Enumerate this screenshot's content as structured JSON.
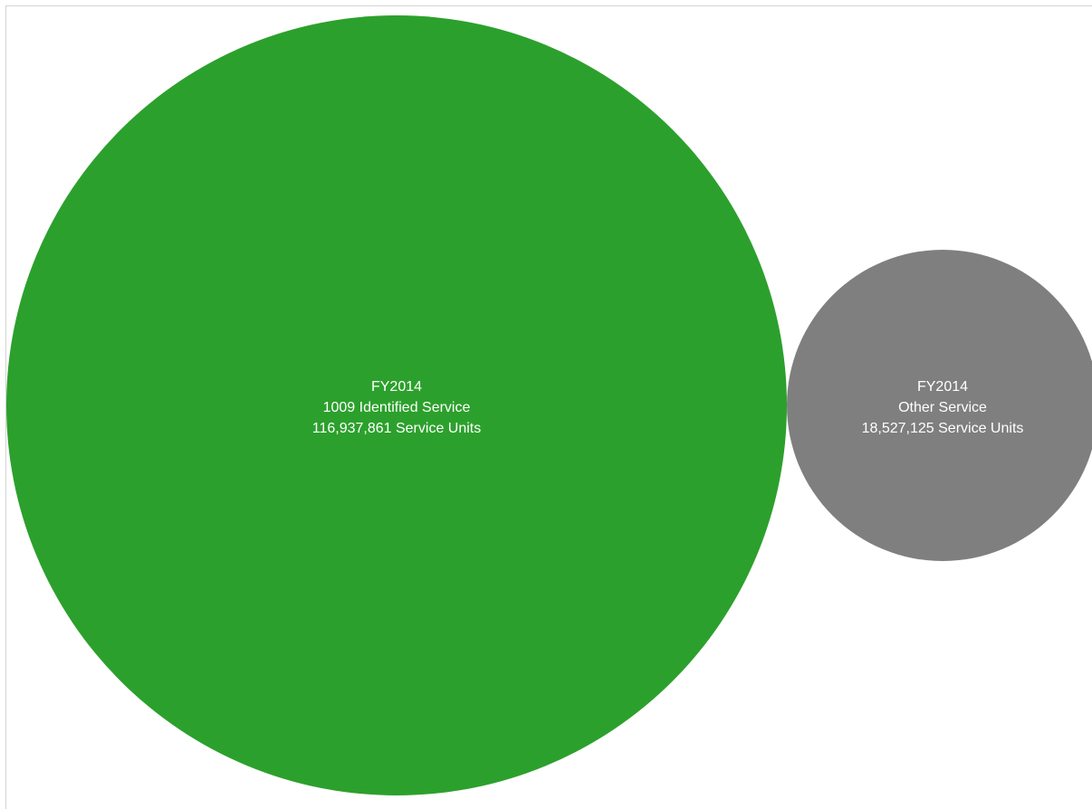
{
  "chart_data": {
    "type": "bubble",
    "bubbles": [
      {
        "period": "FY2014",
        "category": "1009 Identified Service",
        "value": 116937861,
        "value_label": "116,937,861 Service Units",
        "color": "#2ca02c"
      },
      {
        "period": "FY2014",
        "category": "Other Service",
        "value": 18527125,
        "value_label": "18,527,125 Service Units",
        "color": "#7f7f7f"
      }
    ]
  }
}
